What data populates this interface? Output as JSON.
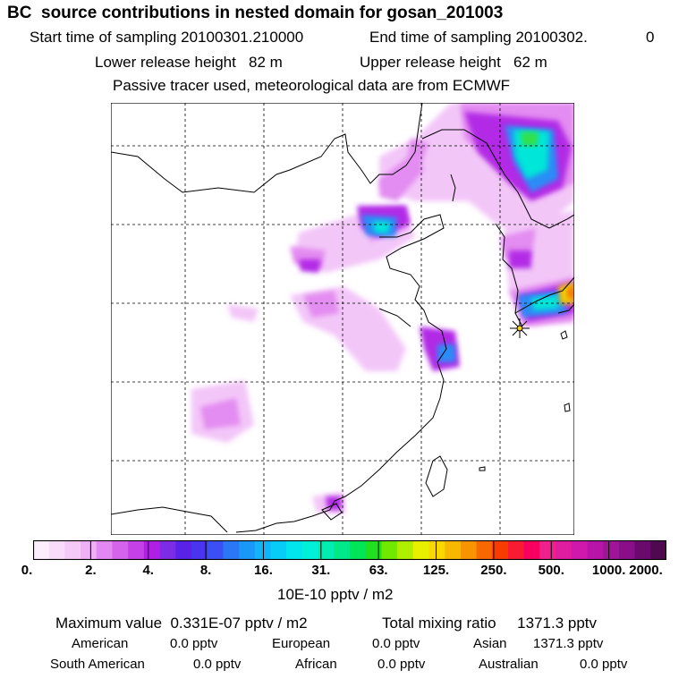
{
  "header": {
    "title": "BC  source contributions in nested domain for gosan_201003",
    "start_time": "Start time of sampling 20100301.210000",
    "end_time": "End time of sampling 20100302.",
    "end_time_tail": "0",
    "lower_release": "Lower release height   82 m",
    "upper_release": "Upper release height   62 m",
    "tracer_note": "Passive tracer used, meteorological data are from ECMWF"
  },
  "colorbar": {
    "ticks": [
      "0.",
      "2.",
      "4.",
      "8.",
      "16.",
      "31.",
      "63.",
      "125.",
      "250.",
      "500.",
      "1000.",
      "2000."
    ],
    "colors": [
      "#fdeefe",
      "#f9dcfb",
      "#f5c8f8",
      "#efb0f5",
      "#e288f0",
      "#d663ec",
      "#c640e8",
      "#b020e4",
      "#7c2ce4",
      "#5a22e8",
      "#4a34f0",
      "#3a50f4",
      "#2a78f6",
      "#1a98f8",
      "#10b4f8",
      "#08ccf8",
      "#00e6ec",
      "#00f0d8",
      "#00ecb0",
      "#00e888",
      "#00e458",
      "#20e020",
      "#70e800",
      "#b0ee00",
      "#e8f000",
      "#f8d800",
      "#f8b800",
      "#f89400",
      "#f86800",
      "#f83c00",
      "#f81c30",
      "#f80060",
      "#f0208c",
      "#e01ca0",
      "#d018ac",
      "#b814a8",
      "#a01498",
      "#880f88",
      "#6a0a6c",
      "#500850"
    ],
    "unit": "10E-10 pptv / m2"
  },
  "summary": {
    "max_value": "Maximum value  0.331E-07 pptv / m2",
    "total_mixing": "Total mixing ratio     1371.3 pptv",
    "rows": [
      [
        {
          "label": "American",
          "value": "0.0 pptv"
        },
        {
          "label": "European",
          "value": "0.0 pptv"
        },
        {
          "label": "Asian",
          "value": "1371.3 pptv"
        }
      ],
      [
        {
          "label": "South American",
          "value": "0.0 pptv"
        },
        {
          "label": "African",
          "value": "0.0 pptv"
        },
        {
          "label": "Australian",
          "value": "0.0 pptv"
        }
      ]
    ]
  },
  "map": {
    "receptor_marker_color": "#000000",
    "grid_style": "dashed",
    "plumes": [
      {
        "name": "northeast-china",
        "level": "16-31"
      },
      {
        "name": "bohai-region",
        "level": "8-16"
      },
      {
        "name": "korea-japan",
        "level": "125-250"
      },
      {
        "name": "shanghai",
        "level": "8-16"
      },
      {
        "name": "south-china",
        "level": "4-8"
      }
    ]
  }
}
